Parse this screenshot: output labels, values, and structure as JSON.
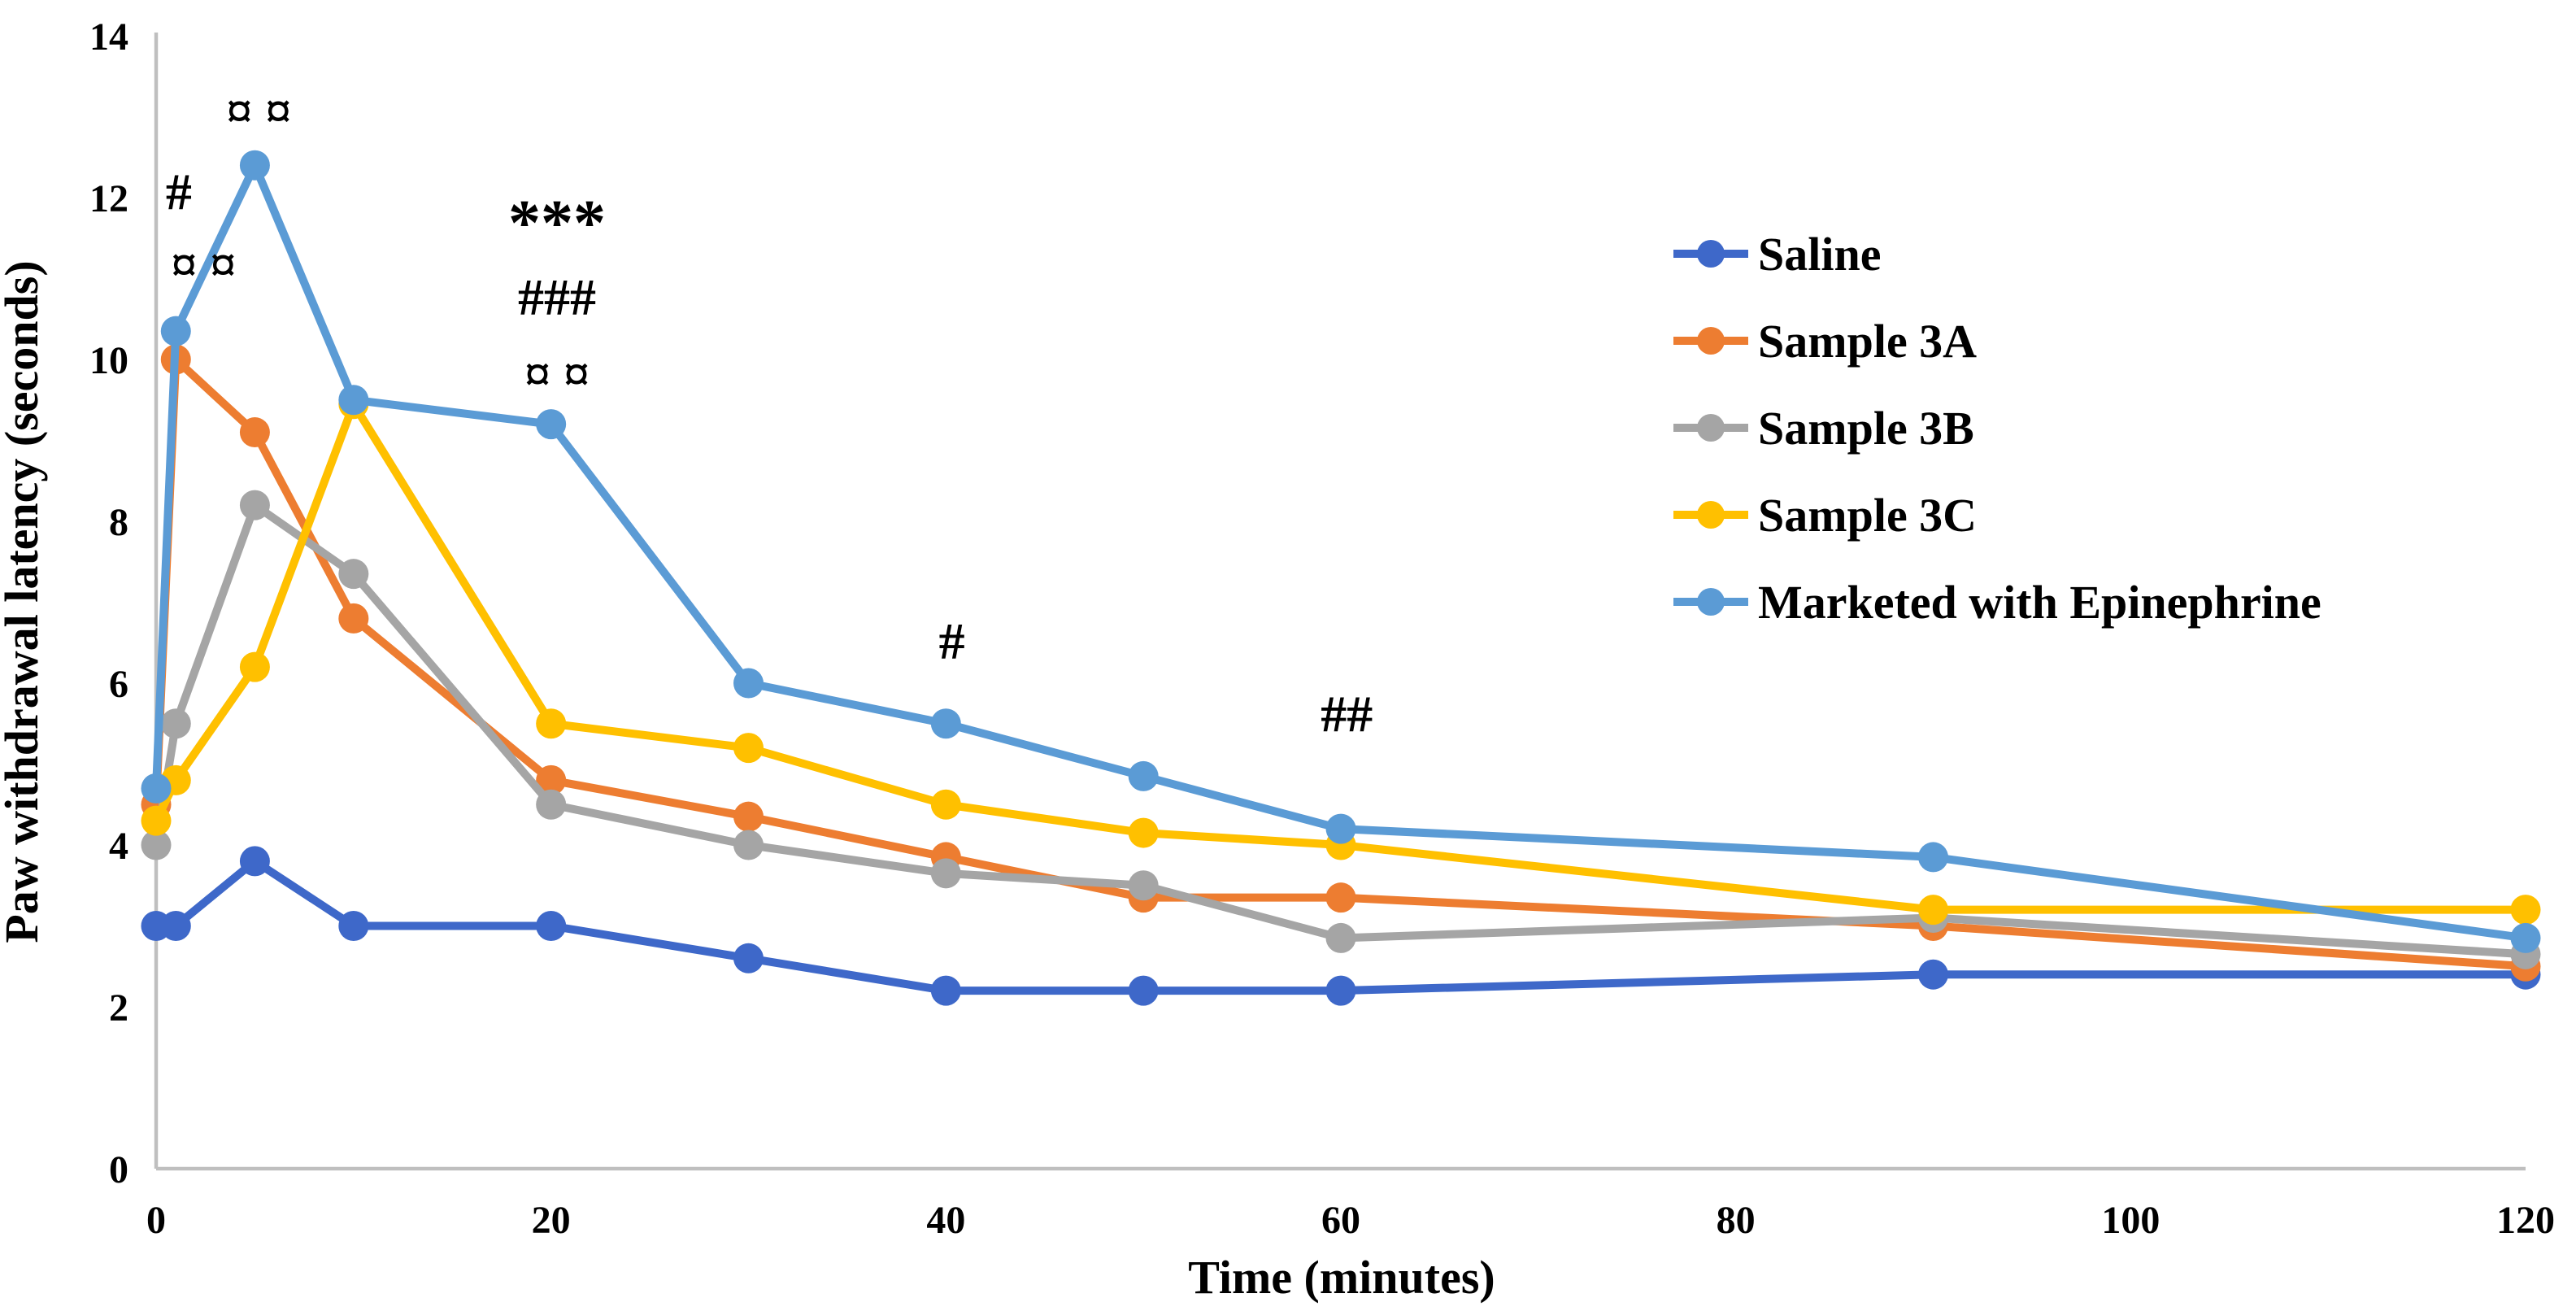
{
  "chart_data": {
    "type": "line",
    "title": "",
    "xlabel": "Time (minutes)",
    "ylabel": "Paw withdrawal latency (seconds)",
    "x": [
      0,
      1,
      5,
      10,
      20,
      30,
      40,
      50,
      60,
      90,
      120
    ],
    "xlim": [
      0,
      120
    ],
    "ylim": [
      0,
      14
    ],
    "x_ticks": [
      0,
      20,
      40,
      60,
      80,
      100,
      120
    ],
    "y_ticks": [
      0,
      2,
      4,
      6,
      8,
      10,
      12,
      14
    ],
    "grid": false,
    "legend_position": "right-center",
    "axis_color": "#BFBFBF",
    "text_color": "#000000",
    "series": [
      {
        "name": "Saline",
        "color": "#3E68C9",
        "values": [
          3.0,
          3.0,
          3.8,
          3.0,
          3.0,
          2.6,
          2.2,
          2.2,
          2.2,
          2.4,
          2.4
        ]
      },
      {
        "name": "Sample 3A",
        "color": "#ED7D31",
        "values": [
          4.5,
          10.0,
          9.1,
          6.8,
          4.8,
          4.35,
          3.85,
          3.35,
          3.35,
          3.0,
          2.5
        ]
      },
      {
        "name": "Sample 3B",
        "color": "#A5A5A5",
        "values": [
          4.0,
          5.5,
          8.2,
          7.35,
          4.5,
          4.0,
          3.65,
          3.5,
          2.85,
          3.1,
          2.65
        ]
      },
      {
        "name": "Sample 3C",
        "color": "#FFC000",
        "values": [
          4.3,
          4.8,
          6.2,
          9.45,
          5.5,
          5.2,
          4.5,
          4.15,
          4.0,
          3.2,
          3.2
        ]
      },
      {
        "name": "Marketed with Epinephrine",
        "color": "#5B9BD5",
        "values": [
          4.7,
          10.35,
          12.4,
          9.5,
          9.2,
          6.0,
          5.5,
          4.85,
          4.2,
          3.85,
          2.85
        ]
      }
    ],
    "annotations": [
      {
        "text": "#",
        "t": 1.15,
        "v": 12.0,
        "size": 64
      },
      {
        "text": "¤ ¤",
        "t": 2.4,
        "v": 11.1,
        "size": 64
      },
      {
        "text": "¤ ¤",
        "t": 5.2,
        "v": 13.0,
        "size": 64
      },
      {
        "text": "***",
        "t": 20.3,
        "v": 11.6,
        "size": 80
      },
      {
        "text": "###",
        "t": 20.3,
        "v": 10.7,
        "size": 64
      },
      {
        "text": "¤ ¤",
        "t": 20.3,
        "v": 9.75,
        "size": 64
      },
      {
        "text": "#",
        "t": 40.3,
        "v": 6.45,
        "size": 64
      },
      {
        "text": "##",
        "t": 60.3,
        "v": 5.55,
        "size": 64
      }
    ]
  }
}
